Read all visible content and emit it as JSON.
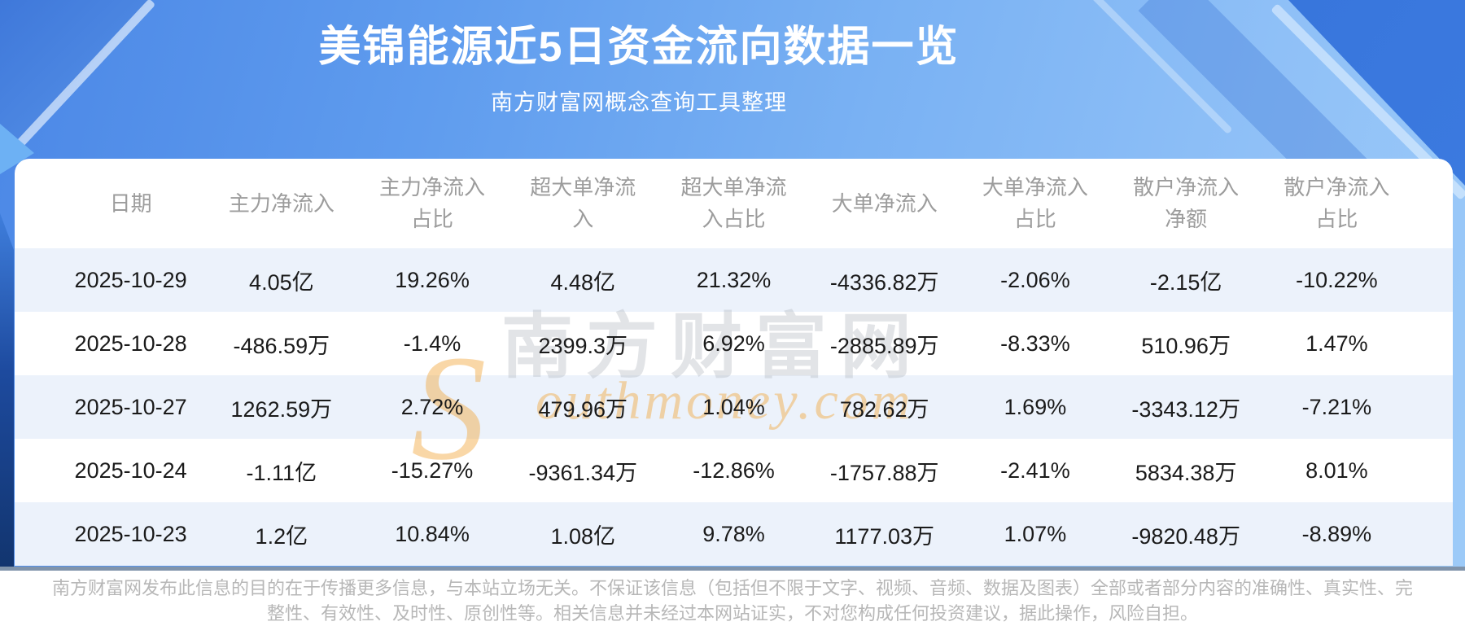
{
  "page": {
    "title": "美锦能源近5日资金流向数据一览",
    "subtitle": "南方财富网概念查询工具整理"
  },
  "chart_data": {
    "type": "table",
    "title": "美锦能源近5日资金流向数据一览",
    "columns": [
      "日期",
      "主力净流入",
      "主力净流入占比",
      "超大单净流入",
      "超大单净流入占比",
      "大单净流入",
      "大单净流入占比",
      "散户净流入净额",
      "散户净流入占比"
    ],
    "rows": [
      [
        "2025-10-29",
        "4.05亿",
        "19.26%",
        "4.48亿",
        "21.32%",
        "-4336.82万",
        "-2.06%",
        "-2.15亿",
        "-10.22%"
      ],
      [
        "2025-10-28",
        "-486.59万",
        "-1.4%",
        "2399.3万",
        "6.92%",
        "-2885.89万",
        "-8.33%",
        "510.96万",
        "1.47%"
      ],
      [
        "2025-10-27",
        "1262.59万",
        "2.72%",
        "479.96万",
        "1.04%",
        "782.62万",
        "1.69%",
        "-3343.12万",
        "-7.21%"
      ],
      [
        "2025-10-24",
        "-1.11亿",
        "-15.27%",
        "-9361.34万",
        "-12.86%",
        "-1757.88万",
        "-2.41%",
        "5834.38万",
        "8.01%"
      ],
      [
        "2025-10-23",
        "1.2亿",
        "10.84%",
        "1.08亿",
        "9.78%",
        "1177.03万",
        "1.07%",
        "-9820.48万",
        "-8.89%"
      ]
    ]
  },
  "watermark": {
    "cn": "南方财富网",
    "en_initial": "S",
    "en_rest": "outhmoney.com"
  },
  "footer": {
    "disclaimer": "南方财富网发布此信息的目的在于传播更多信息，与本站立场无关。不保证该信息（包括但不限于文字、视频、音频、数据及图表）全部或者部分内容的准确性、真实性、完整性、有效性、及时性、原创性等。相关信息并未经过本网站证实，不对您构成任何投资建议，据此操作，风险自担。"
  },
  "colors": {
    "banner_blue": "#4b87e6",
    "dark_wedge": "#2f6ad2",
    "row_stripe": "#ecf2fb",
    "divider": "#8094ab",
    "header_text": "#9c9c9c",
    "cell_text": "#1a1a1a",
    "watermark_orange": "#f2a63c"
  }
}
